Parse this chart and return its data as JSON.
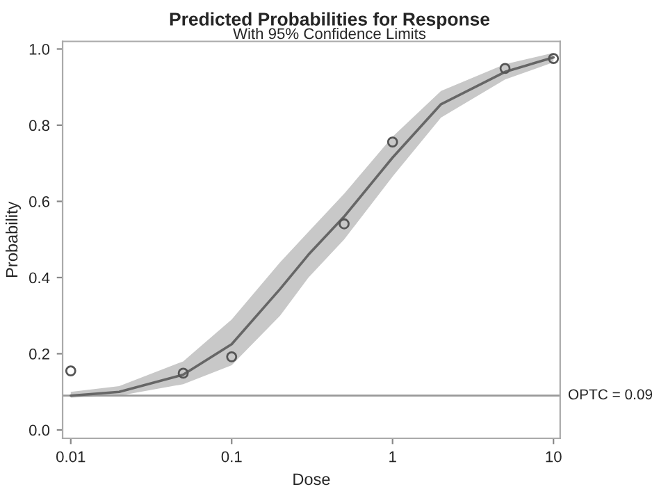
{
  "chart_data": {
    "type": "line",
    "title": "Predicted Probabilities for Response",
    "subtitle": "With 95% Confidence Limits",
    "xlabel": "Dose",
    "ylabel": "Probability",
    "log": "x",
    "xlim": [
      0.0089,
      11
    ],
    "xticks": [
      0.01,
      0.1,
      1,
      10
    ],
    "ylim": [
      -0.022,
      1.02
    ],
    "yticks": [
      {
        "value": 0,
        "label": "0.0"
      },
      {
        "value": 0.2,
        "label": "0.2"
      },
      {
        "value": 0.4,
        "label": "0.4"
      },
      {
        "value": 0.6,
        "label": "0.6"
      },
      {
        "value": 0.8,
        "label": "0.8"
      },
      {
        "value": 1,
        "label": "1.0"
      }
    ],
    "grid": false,
    "legend": false,
    "series": [
      {
        "color": "#666666",
        "x": [
          0.01,
          0.02,
          0.05,
          0.1,
          0.2,
          0.3,
          0.5,
          1,
          2,
          5,
          10
        ],
        "values": [
          0.09,
          0.1,
          0.145,
          0.225,
          0.37,
          0.46,
          0.56,
          0.715,
          0.855,
          0.94,
          0.978
        ],
        "lower": [
          0.085,
          0.09,
          0.12,
          0.17,
          0.3,
          0.4,
          0.5,
          0.665,
          0.82,
          0.92,
          0.965
        ],
        "upper": [
          0.1,
          0.115,
          0.18,
          0.29,
          0.44,
          0.52,
          0.62,
          0.77,
          0.89,
          0.96,
          0.99
        ]
      },
      {
        "type": "scatter",
        "color": "#555555",
        "marker": "circle",
        "x": [
          0.01,
          0.05,
          0.1,
          0.5,
          1,
          5,
          10
        ],
        "values": [
          0.155,
          0.149,
          0.192,
          0.541,
          0.756,
          0.949,
          0.975
        ]
      }
    ],
    "ref_lines": [
      {
        "axis": "y",
        "value": 0.09,
        "label": "OPTC = 0.09",
        "color": "#999999"
      }
    ]
  }
}
